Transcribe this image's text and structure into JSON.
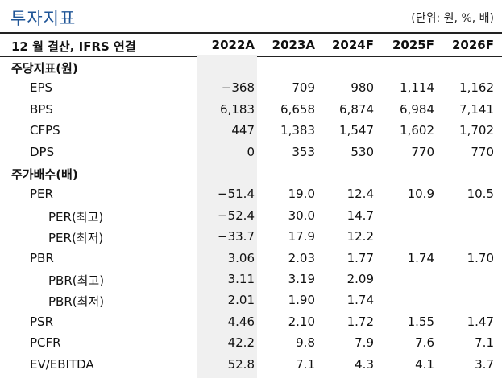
{
  "title": "투자지표",
  "unit": "(단위: 원, %, 배)",
  "header": {
    "label": "12 월 결산, IFRS 연결",
    "years": [
      "2022A",
      "2023A",
      "2024F",
      "2025F",
      "2026F"
    ]
  },
  "rows": [
    {
      "label": "주당지표(원)",
      "level": 0,
      "values": [
        "",
        "",
        "",
        "",
        ""
      ]
    },
    {
      "label": "EPS",
      "level": 1,
      "values": [
        "−368",
        "709",
        "980",
        "1,114",
        "1,162"
      ]
    },
    {
      "label": "BPS",
      "level": 1,
      "values": [
        "6,183",
        "6,658",
        "6,874",
        "6,984",
        "7,141"
      ]
    },
    {
      "label": "CFPS",
      "level": 1,
      "values": [
        "447",
        "1,383",
        "1,547",
        "1,602",
        "1,702"
      ]
    },
    {
      "label": "DPS",
      "level": 1,
      "values": [
        "0",
        "353",
        "530",
        "770",
        "770"
      ]
    },
    {
      "label": "주가배수(배)",
      "level": 0,
      "values": [
        "",
        "",
        "",
        "",
        ""
      ]
    },
    {
      "label": "PER",
      "level": 1,
      "values": [
        "−51.4",
        "19.0",
        "12.4",
        "10.9",
        "10.5"
      ]
    },
    {
      "label": "PER(최고)",
      "level": 2,
      "values": [
        "−52.4",
        "30.0",
        "14.7",
        "",
        ""
      ]
    },
    {
      "label": "PER(최저)",
      "level": 2,
      "values": [
        "−33.7",
        "17.9",
        "12.2",
        "",
        ""
      ]
    },
    {
      "label": "PBR",
      "level": 1,
      "values": [
        "3.06",
        "2.03",
        "1.77",
        "1.74",
        "1.70"
      ]
    },
    {
      "label": "PBR(최고)",
      "level": 2,
      "values": [
        "3.11",
        "3.19",
        "2.09",
        "",
        ""
      ]
    },
    {
      "label": "PBR(최저)",
      "level": 2,
      "values": [
        "2.01",
        "1.90",
        "1.74",
        "",
        ""
      ]
    },
    {
      "label": "PSR",
      "level": 1,
      "values": [
        "4.46",
        "2.10",
        "1.72",
        "1.55",
        "1.47"
      ]
    },
    {
      "label": "PCFR",
      "level": 1,
      "values": [
        "42.2",
        "9.8",
        "7.9",
        "7.6",
        "7.1"
      ]
    },
    {
      "label": "EV/EBITDA",
      "level": 1,
      "values": [
        "52.8",
        "7.1",
        "4.3",
        "4.1",
        "3.7"
      ]
    }
  ]
}
